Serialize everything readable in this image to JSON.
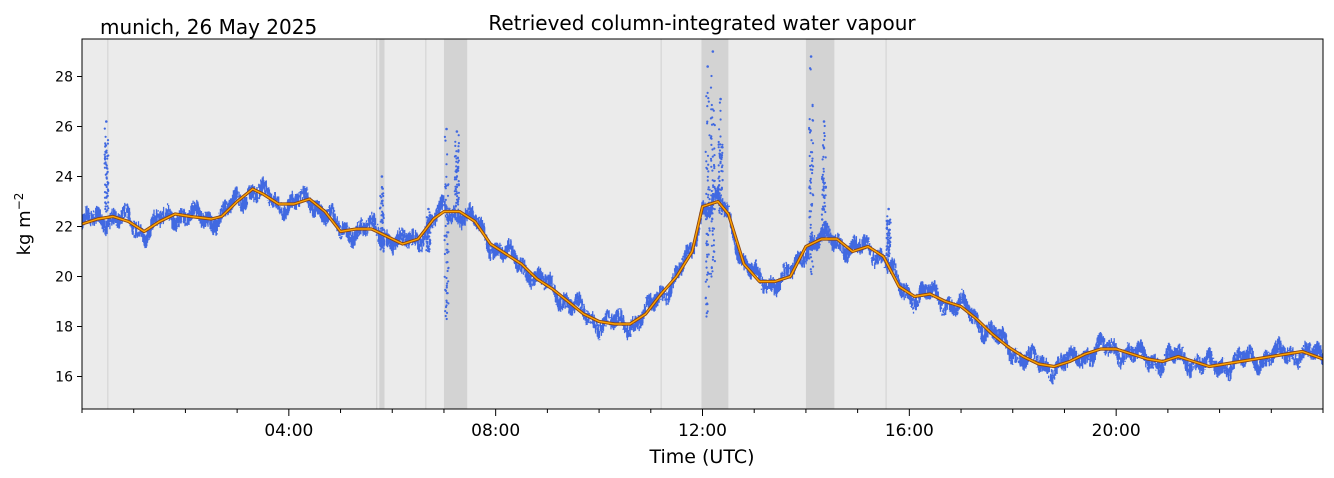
{
  "chart_data": {
    "type": "line",
    "title": "Retrieved column-integrated water vapour",
    "subtitle": "munich, 26 May 2025",
    "xlabel": "Time (UTC)",
    "ylabel": "kg m",
    "ylabel_superscript": "−2",
    "xlim": [
      0,
      24
    ],
    "ylim": [
      14.7,
      29.5
    ],
    "x_ticks": [
      {
        "value": 4,
        "label": "04:00"
      },
      {
        "value": 8,
        "label": "08:00"
      },
      {
        "value": 12,
        "label": "12:00"
      },
      {
        "value": 16,
        "label": "16:00"
      },
      {
        "value": 20,
        "label": "20:00"
      }
    ],
    "x_minor_ticks": [
      0,
      1,
      2,
      3,
      5,
      6,
      7,
      9,
      10,
      11,
      13,
      14,
      15,
      17,
      18,
      19,
      21,
      22,
      23,
      24
    ],
    "y_ticks": [
      16,
      18,
      20,
      22,
      24,
      26,
      28
    ],
    "grid": false,
    "colors": {
      "background": "#ebebeb",
      "shaded": "#d3d3d3",
      "raw": "#4169e1",
      "smooth_outline": "#8b4513",
      "smooth_fill": "#ffa500"
    },
    "shaded_intervals": [
      [
        5.75,
        5.85
      ],
      [
        7.0,
        7.45
      ],
      [
        11.98,
        12.5
      ],
      [
        14.0,
        14.55
      ]
    ],
    "thin_lines": [
      0.5,
      5.7,
      6.65,
      11.2,
      15.55
    ],
    "series": [
      {
        "kind": "smooth",
        "x": [
          0,
          0.3,
          0.6,
          0.9,
          1.2,
          1.5,
          1.8,
          2.1,
          2.5,
          2.7,
          3.0,
          3.3,
          3.5,
          3.8,
          4.1,
          4.4,
          4.7,
          5.0,
          5.3,
          5.6,
          5.9,
          6.2,
          6.5,
          6.8,
          7.0,
          7.3,
          7.6,
          7.9,
          8.2,
          8.5,
          8.8,
          9.1,
          9.4,
          9.7,
          10.0,
          10.3,
          10.6,
          10.9,
          11.2,
          11.5,
          11.8,
          12.0,
          12.3,
          12.5,
          12.8,
          13.1,
          13.4,
          13.7,
          14.0,
          14.3,
          14.6,
          14.9,
          15.2,
          15.5,
          15.8,
          16.1,
          16.4,
          16.7,
          17.0,
          17.3,
          17.6,
          17.9,
          18.2,
          18.5,
          18.8,
          19.1,
          19.4,
          19.7,
          20.0,
          20.3,
          20.6,
          20.9,
          21.2,
          21.5,
          21.8,
          22.1,
          22.4,
          22.7,
          23.0,
          23.3,
          23.6,
          24.0
        ],
        "values": [
          22.1,
          22.3,
          22.4,
          22.2,
          21.8,
          22.2,
          22.5,
          22.4,
          22.3,
          22.4,
          23.0,
          23.5,
          23.3,
          22.9,
          22.9,
          23.1,
          22.6,
          21.8,
          21.9,
          21.9,
          21.6,
          21.3,
          21.5,
          22.3,
          22.6,
          22.6,
          22.2,
          21.3,
          20.9,
          20.5,
          19.9,
          19.5,
          19.0,
          18.5,
          18.2,
          18.1,
          18.1,
          18.5,
          19.3,
          20.0,
          21.0,
          22.8,
          23.0,
          22.5,
          20.5,
          19.8,
          19.8,
          20.0,
          21.2,
          21.5,
          21.5,
          21.0,
          21.2,
          20.8,
          19.6,
          19.2,
          19.3,
          19.0,
          18.8,
          18.3,
          17.7,
          17.2,
          16.8,
          16.5,
          16.4,
          16.6,
          16.9,
          17.1,
          17.1,
          16.9,
          16.7,
          16.6,
          16.8,
          16.6,
          16.4,
          16.5,
          16.6,
          16.7,
          16.8,
          16.9,
          17.0,
          16.7
        ]
      },
      {
        "kind": "raw-points",
        "values": [],
        "spikes": [
          {
            "x": 0.47,
            "top": 26.2,
            "bottom": 22.6
          },
          {
            "x": 7.05,
            "top": 25.9,
            "bottom": 18.3
          },
          {
            "x": 7.25,
            "top": 25.8,
            "bottom": 22.8
          },
          {
            "x": 12.1,
            "top": 28.4,
            "bottom": 18.4
          },
          {
            "x": 12.2,
            "top": 29.0,
            "bottom": 20.0
          },
          {
            "x": 12.35,
            "top": 27.1,
            "bottom": 22.5
          },
          {
            "x": 14.1,
            "top": 28.8,
            "bottom": 20.1
          },
          {
            "x": 14.35,
            "top": 26.2,
            "bottom": 21.5
          },
          {
            "x": 5.8,
            "top": 24.0,
            "bottom": 21.0
          },
          {
            "x": 6.7,
            "top": 22.7,
            "bottom": 21.0
          },
          {
            "x": 15.6,
            "top": 22.7,
            "bottom": 20.8
          }
        ]
      }
    ]
  }
}
